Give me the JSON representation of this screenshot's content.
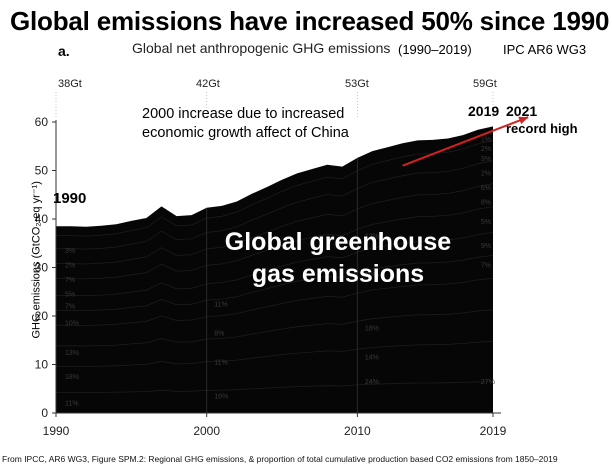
{
  "headline": "Global emissions have increased  50% since 1990",
  "panel_letter": "a.",
  "source_tag": "IPC  AR6 WG3",
  "period": "(1990–2019)",
  "gt_labels": [
    "38Gt",
    "42Gt",
    "53Gt",
    "59Gt"
  ],
  "annotations": {
    "china": "2000 increase due to increased economic growth affect of China",
    "year_1990": "1990",
    "year_2019": "2019",
    "year_2021": "2021",
    "record": "record high",
    "area_text": "Global greenhouse gas emissions"
  },
  "footer": "From IPCC, AR6 WG3, Figure SPM.2: Regional GHG emissions, & proportion of total cumulative production based CO2 emissions from 1850–2019",
  "colors": {
    "area": "#060606",
    "trend_arrow": "#d42020",
    "axis": "#333333"
  },
  "chart_data": {
    "type": "area",
    "title": "Global net anthropogenic GHG emissions",
    "xlabel": "",
    "ylabel": "GHG emissions (GtCO₂-eq yr⁻¹)",
    "xlim": [
      1990,
      2019
    ],
    "ylim": [
      0,
      60
    ],
    "x_ticks": [
      1990,
      2000,
      2010,
      2019
    ],
    "y_ticks": [
      0,
      10,
      20,
      30,
      40,
      50,
      60
    ],
    "grid": false,
    "series": [
      {
        "x": [
          1990,
          1991,
          1992,
          1993,
          1994,
          1995,
          1996,
          1997,
          1998,
          1999,
          2000,
          2001,
          2002,
          2003,
          2004,
          2005,
          2006,
          2007,
          2008,
          2009,
          2010,
          2011,
          2012,
          2013,
          2014,
          2015,
          2016,
          2017,
          2018,
          2019
        ],
        "values": [
          38.5,
          38.5,
          38.4,
          38.6,
          38.9,
          39.6,
          40.2,
          42.6,
          40.6,
          40.8,
          42.3,
          42.7,
          43.6,
          45.2,
          46.6,
          48.1,
          49.4,
          50.3,
          51.2,
          50.8,
          52.6,
          54.0,
          54.8,
          55.6,
          56.2,
          56.3,
          56.6,
          57.3,
          58.4,
          59.1
        ]
      }
    ],
    "band_percent_labels": [
      "11%",
      "18%",
      "13%",
      "10%",
      "7%",
      "5%",
      "7%",
      "2%",
      "3%",
      "16%",
      "11%",
      "8%",
      "11%",
      "14%",
      "18%",
      "24%",
      "10%",
      "12%",
      "27%",
      "8%",
      "6%",
      "2%",
      "9%",
      "7%",
      "5%",
      "3%",
      "2%",
      "1%"
    ],
    "trend_line": {
      "x": [
        2013,
        2021
      ],
      "y": [
        51,
        61
      ]
    }
  }
}
